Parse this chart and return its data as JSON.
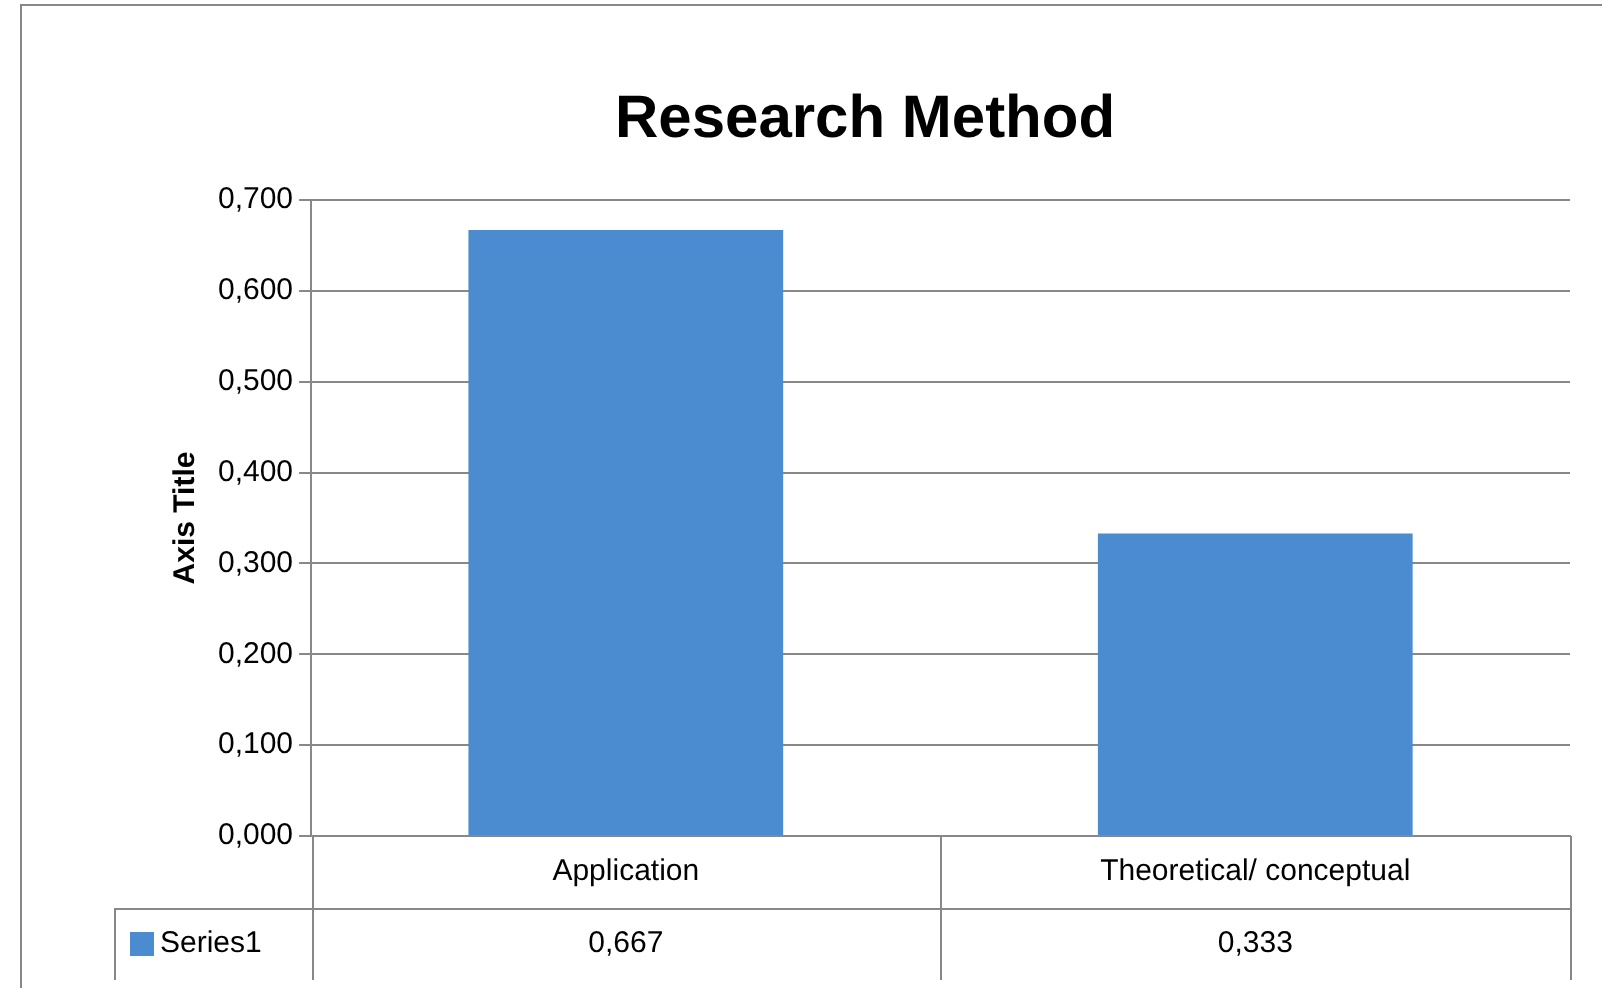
{
  "chart_data": {
    "type": "bar",
    "title": "Research Method",
    "ylabel": "Axis Title",
    "categories": [
      "Application",
      "Theoretical/ conceptual"
    ],
    "series": [
      {
        "name": "Series1",
        "color": "#4a8ccf",
        "values": [
          0.667,
          0.333
        ],
        "value_labels": [
          "0,667",
          "0,333"
        ]
      }
    ],
    "ylim": [
      0,
      0.7
    ],
    "yticks": [
      {
        "value": 0,
        "label": "0,000"
      },
      {
        "value": 0.1,
        "label": "0,100"
      },
      {
        "value": 0.2,
        "label": "0,200"
      },
      {
        "value": 0.3,
        "label": "0,300"
      },
      {
        "value": 0.4,
        "label": "0,400"
      },
      {
        "value": 0.5,
        "label": "0,500"
      },
      {
        "value": 0.6,
        "label": "0,600"
      },
      {
        "value": 0.7,
        "label": "0,700"
      }
    ],
    "grid": "y",
    "legend": "bottom"
  }
}
